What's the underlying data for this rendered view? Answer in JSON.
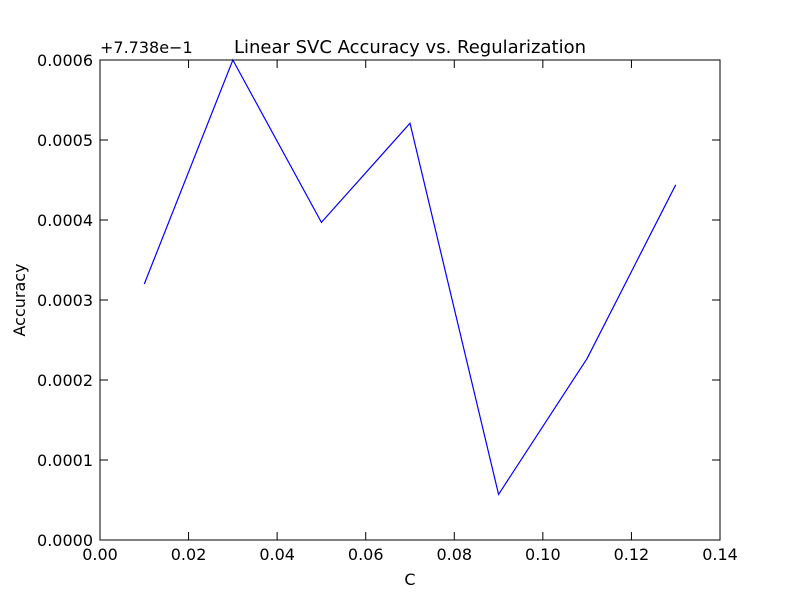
{
  "chart_data": {
    "type": "line",
    "title": "Linear SVC Accuracy vs. Regularization",
    "xlabel": "C",
    "ylabel": "Accuracy",
    "y_offset_label": "+7.738e−1",
    "x": [
      0.01,
      0.03,
      0.05,
      0.07,
      0.09,
      0.11,
      0.13
    ],
    "series": [
      {
        "values": [
          0.00032,
          0.0006,
          0.000397,
          0.000521,
          5.7e-05,
          0.000227,
          0.000444
        ],
        "color": "#0000ff"
      }
    ],
    "xlim": [
      0.0,
      0.14
    ],
    "ylim": [
      0.0,
      0.0006
    ],
    "x_ticks": [
      {
        "value": 0.0,
        "label": "0.00"
      },
      {
        "value": 0.02,
        "label": "0.02"
      },
      {
        "value": 0.04,
        "label": "0.04"
      },
      {
        "value": 0.06,
        "label": "0.06"
      },
      {
        "value": 0.08,
        "label": "0.08"
      },
      {
        "value": 0.1,
        "label": "0.10"
      },
      {
        "value": 0.12,
        "label": "0.12"
      },
      {
        "value": 0.14,
        "label": "0.14"
      }
    ],
    "y_ticks": [
      {
        "value": 0.0,
        "label": "0.0000"
      },
      {
        "value": 0.0001,
        "label": "0.0001"
      },
      {
        "value": 0.0002,
        "label": "0.0002"
      },
      {
        "value": 0.0003,
        "label": "0.0003"
      },
      {
        "value": 0.0004,
        "label": "0.0004"
      },
      {
        "value": 0.0005,
        "label": "0.0005"
      },
      {
        "value": 0.0006,
        "label": "0.0006"
      }
    ],
    "grid": false,
    "legend": "none"
  }
}
